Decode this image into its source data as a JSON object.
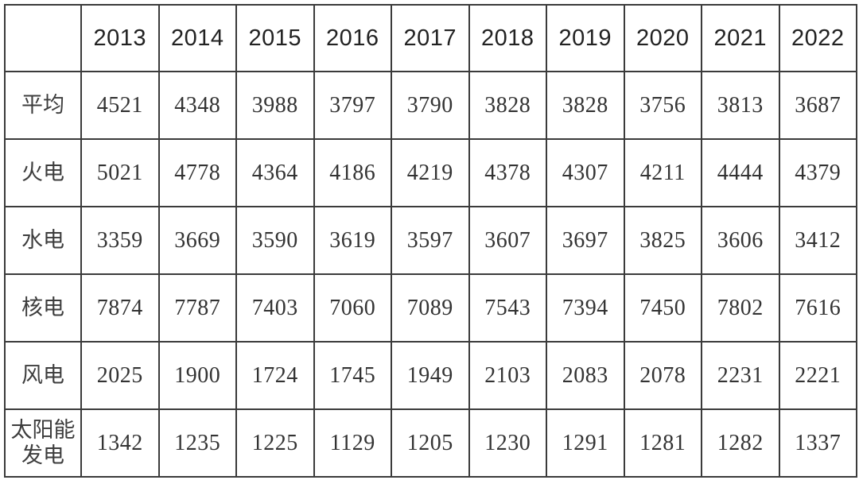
{
  "table": {
    "corner_label": "",
    "years": [
      "2013",
      "2014",
      "2015",
      "2016",
      "2017",
      "2018",
      "2019",
      "2020",
      "2021",
      "2022"
    ],
    "rows": [
      {
        "label": "平均",
        "values": [
          4521,
          4348,
          3988,
          3797,
          3790,
          3828,
          3828,
          3756,
          3813,
          3687
        ]
      },
      {
        "label": "火电",
        "values": [
          5021,
          4778,
          4364,
          4186,
          4219,
          4378,
          4307,
          4211,
          4444,
          4379
        ]
      },
      {
        "label": "水电",
        "values": [
          3359,
          3669,
          3590,
          3619,
          3597,
          3607,
          3697,
          3825,
          3606,
          3412
        ]
      },
      {
        "label": "核电",
        "values": [
          7874,
          7787,
          7403,
          7060,
          7089,
          7543,
          7394,
          7450,
          7802,
          7616
        ]
      },
      {
        "label": "风电",
        "values": [
          2025,
          1900,
          1724,
          1745,
          1949,
          2103,
          2083,
          2078,
          2231,
          2221
        ]
      },
      {
        "label": "太阳能发电",
        "values": [
          1342,
          1235,
          1225,
          1129,
          1205,
          1230,
          1291,
          1281,
          1282,
          1337
        ]
      }
    ]
  },
  "chart_data": {
    "type": "table",
    "title": "",
    "categories": [
      "2013",
      "2014",
      "2015",
      "2016",
      "2017",
      "2018",
      "2019",
      "2020",
      "2021",
      "2022"
    ],
    "series": [
      {
        "name": "平均",
        "values": [
          4521,
          4348,
          3988,
          3797,
          3790,
          3828,
          3828,
          3756,
          3813,
          3687
        ]
      },
      {
        "name": "火电",
        "values": [
          5021,
          4778,
          4364,
          4186,
          4219,
          4378,
          4307,
          4211,
          4444,
          4379
        ]
      },
      {
        "name": "水电",
        "values": [
          3359,
          3669,
          3590,
          3619,
          3597,
          3607,
          3697,
          3825,
          3606,
          3412
        ]
      },
      {
        "name": "核电",
        "values": [
          7874,
          7787,
          7403,
          7060,
          7089,
          7543,
          7394,
          7450,
          7802,
          7616
        ]
      },
      {
        "name": "风电",
        "values": [
          2025,
          1900,
          1724,
          1745,
          1949,
          2103,
          2083,
          2078,
          2231,
          2221
        ]
      },
      {
        "name": "太阳能发电",
        "values": [
          1342,
          1235,
          1225,
          1129,
          1205,
          1230,
          1291,
          1281,
          1282,
          1337
        ]
      }
    ],
    "xlabel": "",
    "ylabel": "",
    "legend_position": "none",
    "grid": true
  },
  "colors": {
    "border": "#3b3b3b",
    "header_text": "#222222",
    "value_text": "#333333",
    "label_text": "#3d3d3d",
    "background": "#ffffff"
  }
}
